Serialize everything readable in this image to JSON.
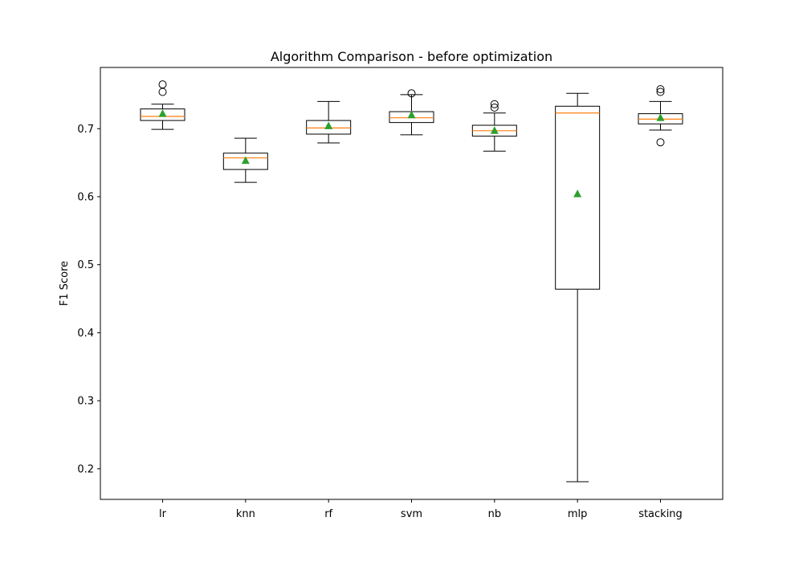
{
  "chart_data": {
    "type": "boxplot",
    "title": "Algorithm Comparison - before optimization",
    "xlabel": "",
    "ylabel": "F1 Score",
    "ylim": [
      0.155,
      0.79
    ],
    "yticks": [
      0.2,
      0.3,
      0.4,
      0.5,
      0.6,
      0.7
    ],
    "ytick_labels": [
      "0.2",
      "0.3",
      "0.4",
      "0.5",
      "0.6",
      "0.7"
    ],
    "grid": false,
    "legend": "none",
    "colors": {
      "box": "#000000",
      "median": "#ff7f0e",
      "mean": "#2ca02c",
      "frame": "#000000",
      "background": "#ffffff"
    },
    "categories": [
      "lr",
      "knn",
      "rf",
      "svm",
      "nb",
      "mlp",
      "stacking"
    ],
    "boxes": [
      {
        "category": "lr",
        "whisker_low": 0.699,
        "q1": 0.712,
        "median": 0.718,
        "q3": 0.729,
        "whisker_high": 0.736,
        "mean": 0.722,
        "outliers": [
          0.765,
          0.754
        ]
      },
      {
        "category": "knn",
        "whisker_low": 0.621,
        "q1": 0.64,
        "median": 0.657,
        "q3": 0.664,
        "whisker_high": 0.686,
        "mean": 0.653,
        "outliers": []
      },
      {
        "category": "rf",
        "whisker_low": 0.679,
        "q1": 0.692,
        "median": 0.701,
        "q3": 0.712,
        "whisker_high": 0.74,
        "mean": 0.704,
        "outliers": []
      },
      {
        "category": "svm",
        "whisker_low": 0.691,
        "q1": 0.709,
        "median": 0.716,
        "q3": 0.725,
        "whisker_high": 0.75,
        "mean": 0.72,
        "outliers": [
          0.752
        ]
      },
      {
        "category": "nb",
        "whisker_low": 0.667,
        "q1": 0.689,
        "median": 0.697,
        "q3": 0.705,
        "whisker_high": 0.723,
        "mean": 0.697,
        "outliers": [
          0.736,
          0.731
        ]
      },
      {
        "category": "mlp",
        "whisker_low": 0.181,
        "q1": 0.464,
        "median": 0.723,
        "q3": 0.733,
        "whisker_high": 0.752,
        "mean": 0.604,
        "outliers": []
      },
      {
        "category": "stacking",
        "whisker_low": 0.698,
        "q1": 0.707,
        "median": 0.714,
        "q3": 0.722,
        "whisker_high": 0.74,
        "mean": 0.716,
        "outliers": [
          0.758,
          0.754,
          0.68
        ]
      }
    ]
  }
}
